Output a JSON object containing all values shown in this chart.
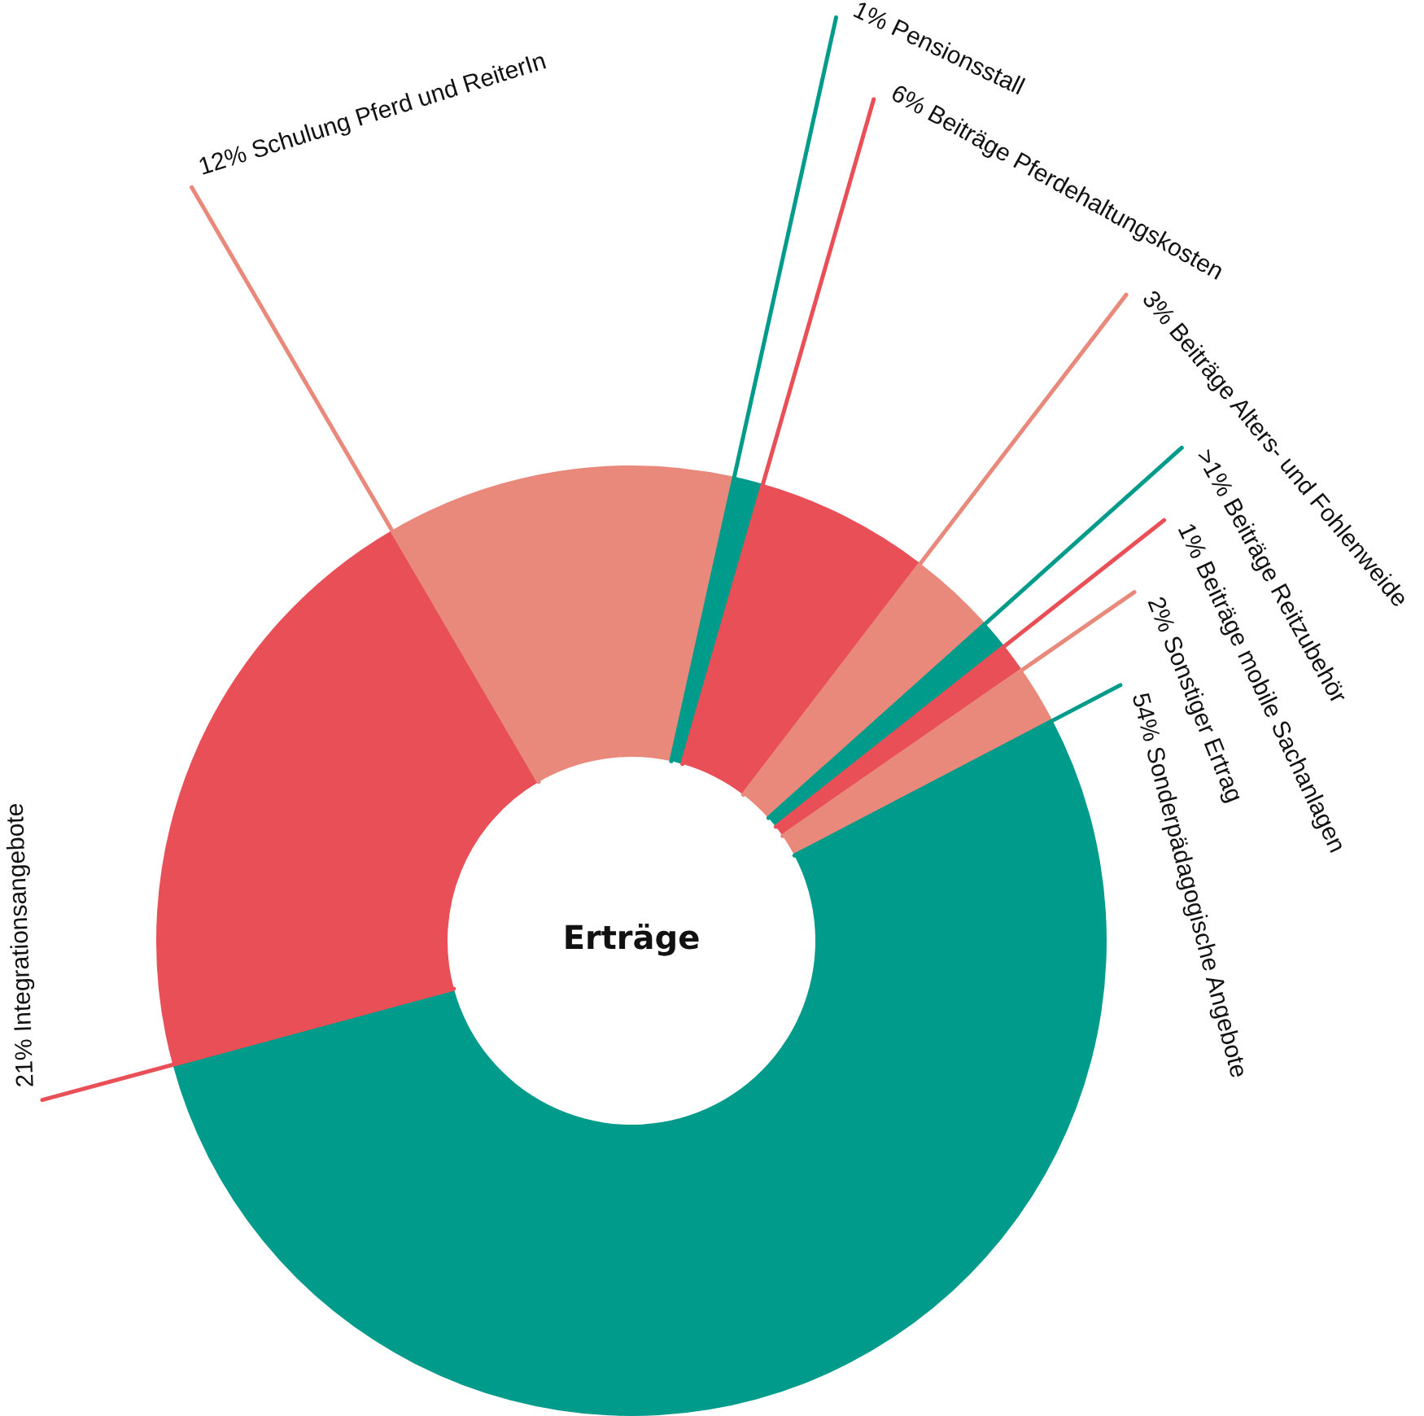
{
  "chart_data": {
    "type": "donut",
    "title": "Erträge",
    "categories": [
      "Pensionsstall",
      "Beiträge Pferdehaltungskosten",
      "Beiträge Alters- und Fohlenweide",
      "Beiträge Reitzubehör",
      "Beiträge mobile Sachanlagen",
      "Sonstiger Ertrag",
      "Sonderpädagogische Angebote",
      "Integrationsangebote",
      "Schulung Pferd und ReiterIn"
    ],
    "values": [
      1,
      6,
      3,
      1,
      1,
      2,
      54,
      21,
      12
    ],
    "value_labels": [
      "1%",
      "6%",
      "3%",
      ">1%",
      "1%",
      "2%",
      "54%",
      "21%",
      "12%"
    ],
    "colors": [
      "#009b8a",
      "#e84f57",
      "#e8897b",
      "#009b8a",
      "#e84f57",
      "#e8897b",
      "#009b8a",
      "#e84f57",
      "#e8897b"
    ],
    "legend": false
  }
}
